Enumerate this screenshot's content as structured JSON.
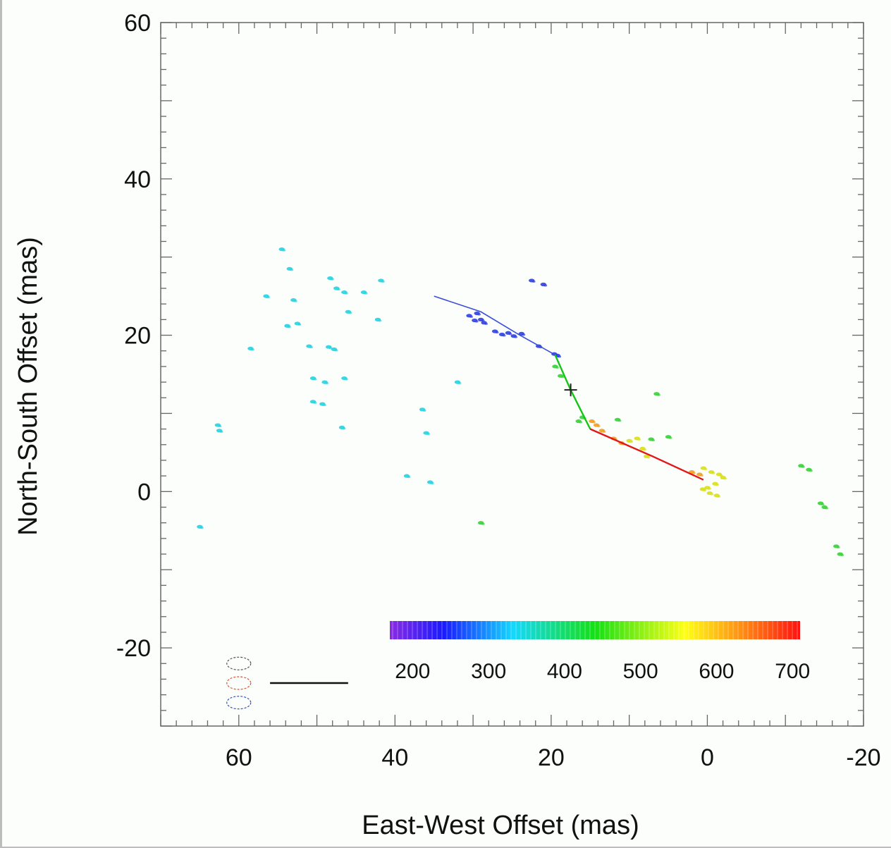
{
  "chart_data": {
    "type": "scatter",
    "xlabel": "East-West Offset (mas)",
    "ylabel": "North-South Offset (mas)",
    "xlim": [
      70,
      -20
    ],
    "ylim": [
      -30,
      60
    ],
    "x_ticks": [
      60,
      40,
      20,
      0,
      -20
    ],
    "y_ticks": [
      60,
      40,
      20,
      0,
      -20
    ],
    "x_tick_labels": [
      "60",
      "40",
      "20",
      "0",
      "-20"
    ],
    "y_tick_labels": [
      "60",
      "40",
      "20",
      "0",
      "-20"
    ],
    "grid": false,
    "colorbar": {
      "range": [
        170,
        710
      ],
      "ticks": [
        200,
        300,
        400,
        500,
        600,
        700
      ],
      "tick_labels": [
        "200",
        "300",
        "400",
        "500",
        "600",
        "700"
      ],
      "colormap": "rainbow (violet-blue-cyan-green-yellow-red)"
    },
    "scale_bar": {
      "length": 10
    },
    "beams": [
      {
        "x": 60,
        "y": -22,
        "color": "#555555"
      },
      {
        "x": 60,
        "y": -24.5,
        "color": "#e05030"
      },
      {
        "x": 60,
        "y": -27,
        "color": "#3050d0"
      }
    ],
    "fit_lines": [
      {
        "color": "#3a4fd8",
        "points": [
          [
            35,
            25
          ],
          [
            29,
            23
          ],
          [
            24,
            20
          ],
          [
            19.5,
            17.5
          ]
        ]
      },
      {
        "color": "#16c616",
        "points": [
          [
            19.5,
            17.5
          ],
          [
            17.5,
            13
          ],
          [
            15,
            8
          ]
        ]
      },
      {
        "color": "#e01818",
        "points": [
          [
            15,
            8
          ],
          [
            7,
            4.5
          ],
          [
            0.5,
            1.5
          ]
        ]
      }
    ],
    "center_marker": {
      "x": 17.5,
      "y": 13
    },
    "series": [
      {
        "velocity": 220,
        "color": "#2f3fe0",
        "points": [
          [
            29.5,
            22.8
          ],
          [
            29,
            22
          ],
          [
            28.6,
            21.6
          ],
          [
            29.8,
            21.9
          ],
          [
            27.2,
            20.5
          ],
          [
            26.3,
            20.1
          ],
          [
            25.5,
            20.3
          ],
          [
            24.8,
            19.9
          ],
          [
            23.8,
            20.2
          ],
          [
            21.6,
            18.6
          ],
          [
            19.6,
            17.6
          ],
          [
            19.2,
            17.4
          ],
          [
            22.5,
            27
          ],
          [
            21,
            26.5
          ],
          [
            30.5,
            22.5
          ]
        ]
      },
      {
        "velocity": 320,
        "color": "#26d2e0",
        "points": [
          [
            54.5,
            31
          ],
          [
            53.5,
            28.5
          ],
          [
            56.5,
            25
          ],
          [
            53,
            24.5
          ],
          [
            48.3,
            27.3
          ],
          [
            47.5,
            26
          ],
          [
            46.5,
            25.5
          ],
          [
            44,
            25.5
          ],
          [
            41.8,
            27
          ],
          [
            46,
            23
          ],
          [
            42.2,
            22
          ],
          [
            53.8,
            21.2
          ],
          [
            52.5,
            21.5
          ],
          [
            58.5,
            18.3
          ],
          [
            51,
            18.6
          ],
          [
            48.5,
            18.5
          ],
          [
            47.8,
            18.2
          ],
          [
            50.5,
            14.5
          ],
          [
            49,
            14
          ],
          [
            46.5,
            14.5
          ],
          [
            32,
            14
          ],
          [
            50.5,
            11.5
          ],
          [
            49.3,
            11.2
          ],
          [
            36.5,
            10.5
          ],
          [
            36,
            7.5
          ],
          [
            62.7,
            8.5
          ],
          [
            62.5,
            7.8
          ],
          [
            46.8,
            8.2
          ],
          [
            38.5,
            2
          ],
          [
            35.5,
            1.2
          ],
          [
            65,
            -4.5
          ]
        ]
      },
      {
        "velocity": 460,
        "color": "#36d236",
        "points": [
          [
            19.5,
            16
          ],
          [
            18.8,
            14.8
          ],
          [
            16,
            9.5
          ],
          [
            16.5,
            9
          ],
          [
            11.5,
            9.2
          ],
          [
            6.5,
            12.5
          ],
          [
            7.2,
            6.7
          ],
          [
            5,
            7
          ],
          [
            29,
            -4
          ],
          [
            -12,
            3.3
          ],
          [
            -13,
            2.8
          ],
          [
            -14.5,
            -1.5
          ],
          [
            -15,
            -2
          ],
          [
            -16.5,
            -7
          ],
          [
            -17,
            -8
          ]
        ]
      },
      {
        "velocity": 570,
        "color": "#d8e018",
        "points": [
          [
            10,
            6.5
          ],
          [
            9,
            6.8
          ],
          [
            8.3,
            5.5
          ],
          [
            7.8,
            4.5
          ],
          [
            0.5,
            3
          ],
          [
            -0.5,
            2.5
          ],
          [
            -1.5,
            2.2
          ],
          [
            -2,
            1.8
          ],
          [
            -1,
            1
          ],
          [
            0,
            0.5
          ],
          [
            -0.3,
            -0.2
          ],
          [
            0.6,
            0.3
          ],
          [
            -1.2,
            -0.5
          ]
        ]
      },
      {
        "velocity": 650,
        "color": "#f0a020",
        "points": [
          [
            14.8,
            9
          ],
          [
            14.2,
            8.5
          ],
          [
            13.5,
            7.8
          ],
          [
            12,
            6.8
          ],
          [
            11,
            6.2
          ],
          [
            2,
            2.5
          ],
          [
            1,
            2.2
          ]
        ]
      }
    ]
  }
}
